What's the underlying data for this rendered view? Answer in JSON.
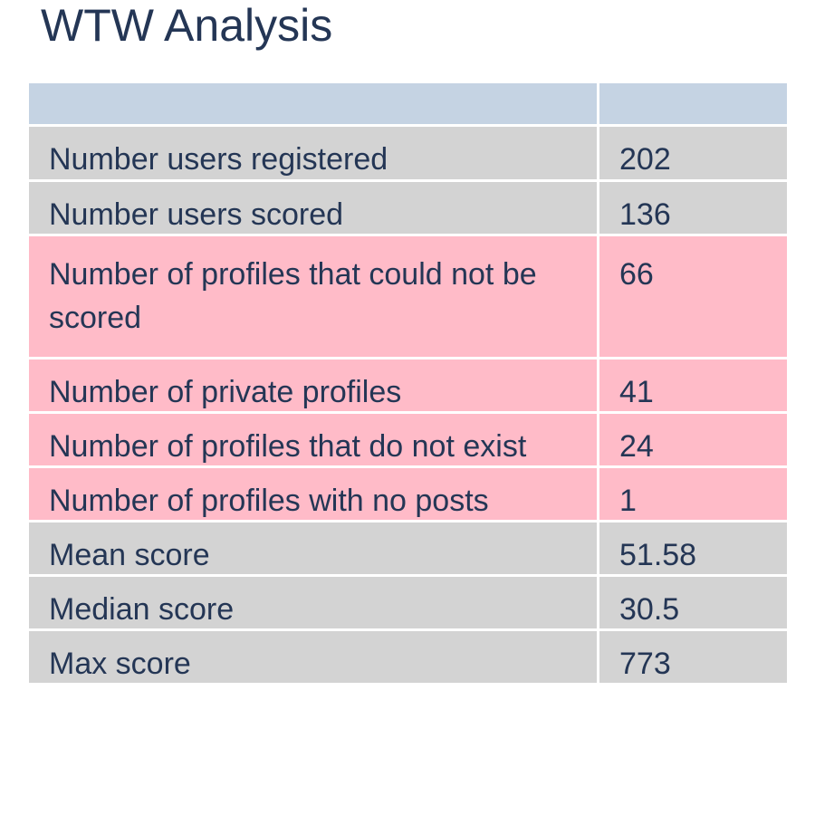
{
  "title": "WTW Analysis",
  "table": {
    "header": [
      "",
      ""
    ],
    "rows": [
      {
        "label": "Number users registered",
        "value": "202",
        "status": "normal"
      },
      {
        "label": "Number users scored",
        "value": "136",
        "status": "normal"
      },
      {
        "label": "Number of profiles that could not be scored",
        "value": "66",
        "status": "highlight"
      },
      {
        "label": "Number of private profiles",
        "value": "41",
        "status": "highlight"
      },
      {
        "label": "Number of profiles that do not exist",
        "value": "24",
        "status": "highlight"
      },
      {
        "label": "Number of profiles with no posts",
        "value": "1",
        "status": "highlight"
      },
      {
        "label": "Mean score",
        "value": "51.58",
        "status": "normal"
      },
      {
        "label": "Median score",
        "value": "30.5",
        "status": "normal"
      },
      {
        "label": "Max score",
        "value": "773",
        "status": "normal"
      }
    ]
  },
  "colors": {
    "header": "#c5d3e3",
    "normal": "#d3d3d3",
    "highlight": "#ffbbc8",
    "text": "#243655"
  }
}
